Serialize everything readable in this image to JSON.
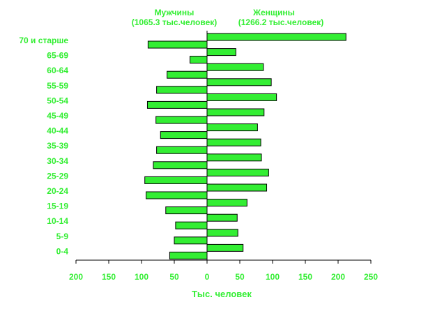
{
  "chart_data": {
    "type": "bar",
    "orientation": "horizontal",
    "subtype": "population-pyramid",
    "title_left": [
      "Мужчины",
      "(1065.3 тыс.человек)"
    ],
    "title_right": [
      "Женщины",
      "(1266.2 тыс.человек)"
    ],
    "xlabel": "Тыс. человек",
    "categories": [
      "70 и старше",
      "65-69",
      "60-64",
      "55-59",
      "50-54",
      "45-49",
      "40-44",
      "35-39",
      "30-34",
      "25-29",
      "20-24",
      "15-19",
      "10-14",
      "5-9",
      "0-4"
    ],
    "series": [
      {
        "name": "Мужчины",
        "values": [
          90,
          26,
          61,
          77,
          91,
          78,
          71,
          77,
          82,
          95,
          93,
          63,
          48,
          50,
          57
        ]
      },
      {
        "name": "Женщины",
        "values": [
          212,
          44,
          86,
          98,
          106,
          87,
          77,
          82,
          83,
          94,
          91,
          61,
          46,
          47,
          55
        ]
      }
    ],
    "xticks": [
      "200",
      "150",
      "100",
      "50",
      "0",
      "50",
      "100",
      "150",
      "200",
      "250"
    ],
    "xlim": [
      -200,
      250
    ],
    "bar_color": "#33ee33",
    "text_color": "#33ee33",
    "grid": false,
    "legend": "none"
  }
}
